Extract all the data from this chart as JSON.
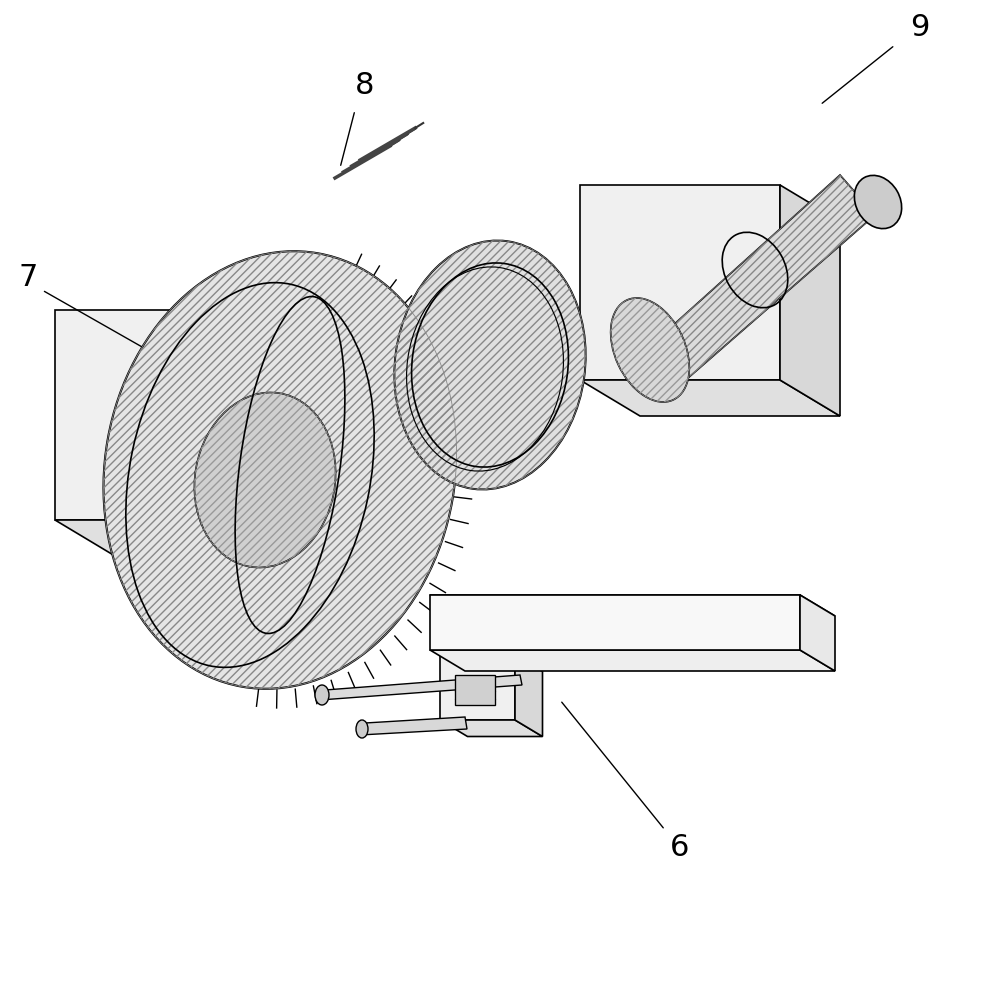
{
  "bg_color": "#ffffff",
  "line_color": "#000000",
  "hatch_color": "#555555",
  "label_7": "7",
  "label_8": "8",
  "label_9": "9",
  "label_6": "6",
  "figsize": [
    9.84,
    10.0
  ],
  "dpi": 100
}
